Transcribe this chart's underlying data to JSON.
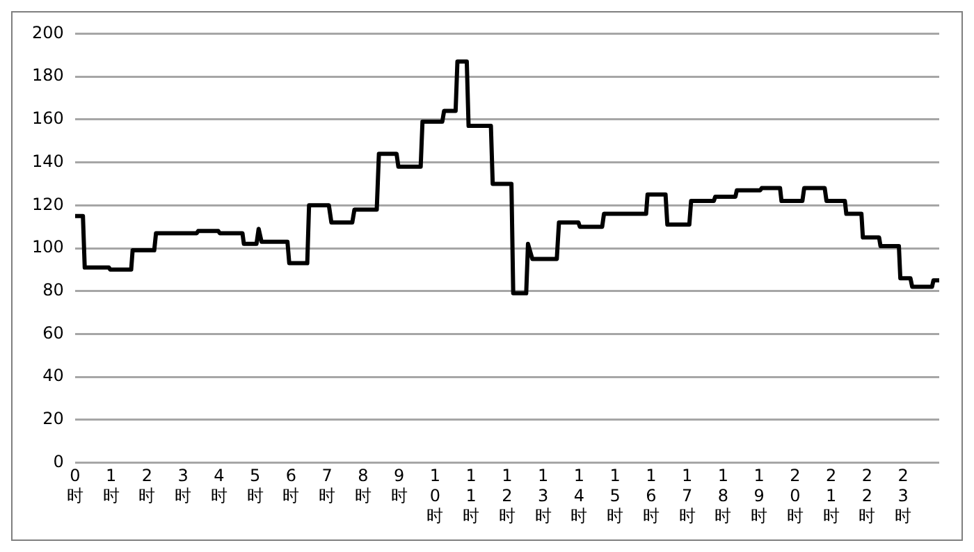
{
  "chart_data": {
    "type": "line",
    "xlim": [
      0,
      24
    ],
    "xticks": [
      {
        "value": 0,
        "label": "0时"
      },
      {
        "value": 1,
        "label": "1时"
      },
      {
        "value": 2,
        "label": "2时"
      },
      {
        "value": 3,
        "label": "3时"
      },
      {
        "value": 4,
        "label": "4时"
      },
      {
        "value": 5,
        "label": "5时"
      },
      {
        "value": 6,
        "label": "6时"
      },
      {
        "value": 7,
        "label": "7时"
      },
      {
        "value": 8,
        "label": "8时"
      },
      {
        "value": 9,
        "label": "9时"
      },
      {
        "value": 10,
        "label": "10时"
      },
      {
        "value": 11,
        "label": "11时"
      },
      {
        "value": 12,
        "label": "12时"
      },
      {
        "value": 13,
        "label": "13时"
      },
      {
        "value": 14,
        "label": "14时"
      },
      {
        "value": 15,
        "label": "15时"
      },
      {
        "value": 16,
        "label": "16时"
      },
      {
        "value": 17,
        "label": "17时"
      },
      {
        "value": 18,
        "label": "18时"
      },
      {
        "value": 19,
        "label": "19时"
      },
      {
        "value": 20,
        "label": "20时"
      },
      {
        "value": 21,
        "label": "21时"
      },
      {
        "value": 22,
        "label": "22时"
      },
      {
        "value": 23,
        "label": "23时"
      }
    ],
    "ylim": [
      0,
      200
    ],
    "yticks": [
      0,
      20,
      40,
      60,
      80,
      100,
      120,
      140,
      160,
      180,
      200
    ],
    "grid": "y",
    "legend": false,
    "marker": "none",
    "line_style": "solid",
    "series": [
      {
        "color": "#000000",
        "x": [
          0,
          0.22,
          0.27,
          0.94,
          0.98,
          1.56,
          1.6,
          2.2,
          2.25,
          2.77,
          3.38,
          3.42,
          3.98,
          4.02,
          4.65,
          4.69,
          5.04,
          5.1,
          5.18,
          5.9,
          5.95,
          6.45,
          6.5,
          7.05,
          7.12,
          7.7,
          7.76,
          8.38,
          8.44,
          8.93,
          8.98,
          9.6,
          9.65,
          10.2,
          10.25,
          10.57,
          10.62,
          10.88,
          10.93,
          11.55,
          11.6,
          12.12,
          12.17,
          12.53,
          12.58,
          12.7,
          13.38,
          13.44,
          13.98,
          14.02,
          14.64,
          14.69,
          15.86,
          15.9,
          16.4,
          16.45,
          17.06,
          17.11,
          17.74,
          17.78,
          18.34,
          18.38,
          19.03,
          19.07,
          19.58,
          19.62,
          20.2,
          20.25,
          20.82,
          20.87,
          21.38,
          21.42,
          21.84,
          21.88,
          22.33,
          22.37,
          22.88,
          22.92,
          23.2,
          23.25,
          23.8,
          23.84,
          24
        ],
        "values": [
          115,
          115,
          91,
          91,
          90,
          90,
          99,
          99,
          107,
          107,
          107,
          108,
          108,
          107,
          107,
          102,
          102,
          109,
          103,
          103,
          93,
          93,
          120,
          120,
          112,
          112,
          118,
          118,
          144,
          144,
          138,
          138,
          159,
          159,
          164,
          164,
          187,
          187,
          157,
          157,
          130,
          130,
          79,
          79,
          102,
          95,
          95,
          112,
          112,
          110,
          110,
          116,
          116,
          125,
          125,
          111,
          111,
          122,
          122,
          124,
          124,
          127,
          127,
          128,
          128,
          122,
          122,
          128,
          128,
          122,
          122,
          116,
          116,
          105,
          105,
          101,
          101,
          86,
          86,
          82,
          82,
          85,
          85
        ]
      }
    ]
  }
}
